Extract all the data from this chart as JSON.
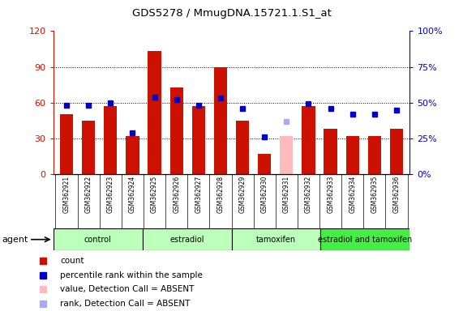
{
  "title": "GDS5278 / MmugDNA.15721.1.S1_at",
  "samples": [
    "GSM362921",
    "GSM362922",
    "GSM362923",
    "GSM362924",
    "GSM362925",
    "GSM362926",
    "GSM362927",
    "GSM362928",
    "GSM362929",
    "GSM362930",
    "GSM362931",
    "GSM362932",
    "GSM362933",
    "GSM362934",
    "GSM362935",
    "GSM362936"
  ],
  "counts": [
    50,
    45,
    57,
    32,
    103,
    73,
    57,
    90,
    45,
    17,
    32,
    57,
    38,
    32,
    32,
    38
  ],
  "ranks": [
    48,
    48,
    50,
    29,
    54,
    52,
    48,
    53,
    46,
    26,
    37,
    49,
    46,
    42,
    42,
    45
  ],
  "absent_count": [
    false,
    false,
    false,
    false,
    false,
    false,
    false,
    false,
    false,
    false,
    true,
    false,
    false,
    false,
    false,
    false
  ],
  "absent_rank": [
    false,
    false,
    false,
    false,
    false,
    false,
    false,
    false,
    false,
    false,
    true,
    false,
    false,
    false,
    false,
    false
  ],
  "group_defs": [
    {
      "label": "control",
      "start": 0,
      "end": 4,
      "color": "#bbffbb"
    },
    {
      "label": "estradiol",
      "start": 4,
      "end": 8,
      "color": "#bbffbb"
    },
    {
      "label": "tamoxifen",
      "start": 8,
      "end": 12,
      "color": "#bbffbb"
    },
    {
      "label": "estradiol and tamoxifen",
      "start": 12,
      "end": 16,
      "color": "#44ee44"
    }
  ],
  "ylim_left": [
    0,
    120
  ],
  "yticks_left": [
    0,
    30,
    60,
    90,
    120
  ],
  "ytick_labels_left": [
    "0",
    "30",
    "60",
    "90",
    "120"
  ],
  "bar_color": "#cc1100",
  "bar_absent_color": "#ffbbbb",
  "rank_color": "#0000cc",
  "rank_absent_color": "#aaaaee"
}
